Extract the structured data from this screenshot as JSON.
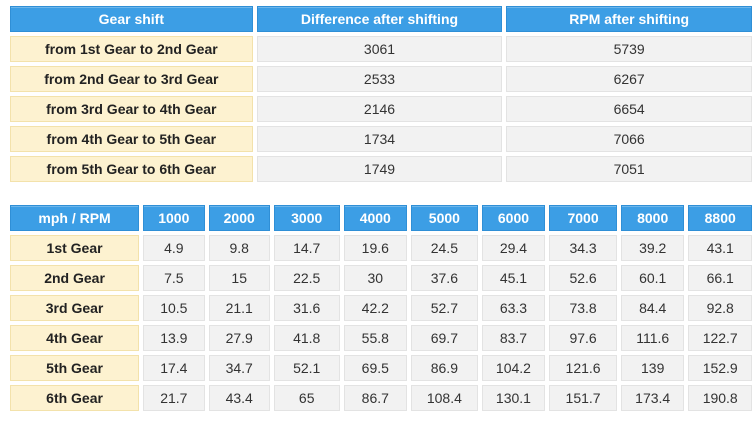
{
  "shift_table": {
    "headers": [
      "Gear shift",
      "Difference after shifting",
      "RPM after shifting"
    ],
    "rows": [
      {
        "label": "from 1st Gear to 2nd Gear",
        "difference": "3061",
        "rpm": "5739"
      },
      {
        "label": "from 2nd Gear to 3rd Gear",
        "difference": "2533",
        "rpm": "6267"
      },
      {
        "label": "from 3rd Gear to 4th Gear",
        "difference": "2146",
        "rpm": "6654"
      },
      {
        "label": "from 4th Gear to 5th Gear",
        "difference": "1734",
        "rpm": "7066"
      },
      {
        "label": "from 5th Gear to 6th Gear",
        "difference": "1749",
        "rpm": "7051"
      }
    ]
  },
  "speed_table": {
    "corner_label": "mph / RPM",
    "rpm_columns": [
      "1000",
      "2000",
      "3000",
      "4000",
      "5000",
      "6000",
      "7000",
      "8000",
      "8800"
    ],
    "rows": [
      {
        "gear": "1st Gear",
        "values": [
          "4.9",
          "9.8",
          "14.7",
          "19.6",
          "24.5",
          "29.4",
          "34.3",
          "39.2",
          "43.1"
        ]
      },
      {
        "gear": "2nd Gear",
        "values": [
          "7.5",
          "15",
          "22.5",
          "30",
          "37.6",
          "45.1",
          "52.6",
          "60.1",
          "66.1"
        ]
      },
      {
        "gear": "3rd Gear",
        "values": [
          "10.5",
          "21.1",
          "31.6",
          "42.2",
          "52.7",
          "63.3",
          "73.8",
          "84.4",
          "92.8"
        ]
      },
      {
        "gear": "4th Gear",
        "values": [
          "13.9",
          "27.9",
          "41.8",
          "55.8",
          "69.7",
          "83.7",
          "97.6",
          "111.6",
          "122.7"
        ]
      },
      {
        "gear": "5th Gear",
        "values": [
          "17.4",
          "34.7",
          "52.1",
          "69.5",
          "86.9",
          "104.2",
          "121.6",
          "139",
          "152.9"
        ]
      },
      {
        "gear": "6th Gear",
        "values": [
          "21.7",
          "43.4",
          "65",
          "86.7",
          "108.4",
          "130.1",
          "151.7",
          "173.4",
          "190.8"
        ]
      }
    ]
  },
  "colors": {
    "header_blue": "#3c9ee5",
    "row_head_cream": "#fdf2d0",
    "cell_gray": "#f2f2f2"
  }
}
